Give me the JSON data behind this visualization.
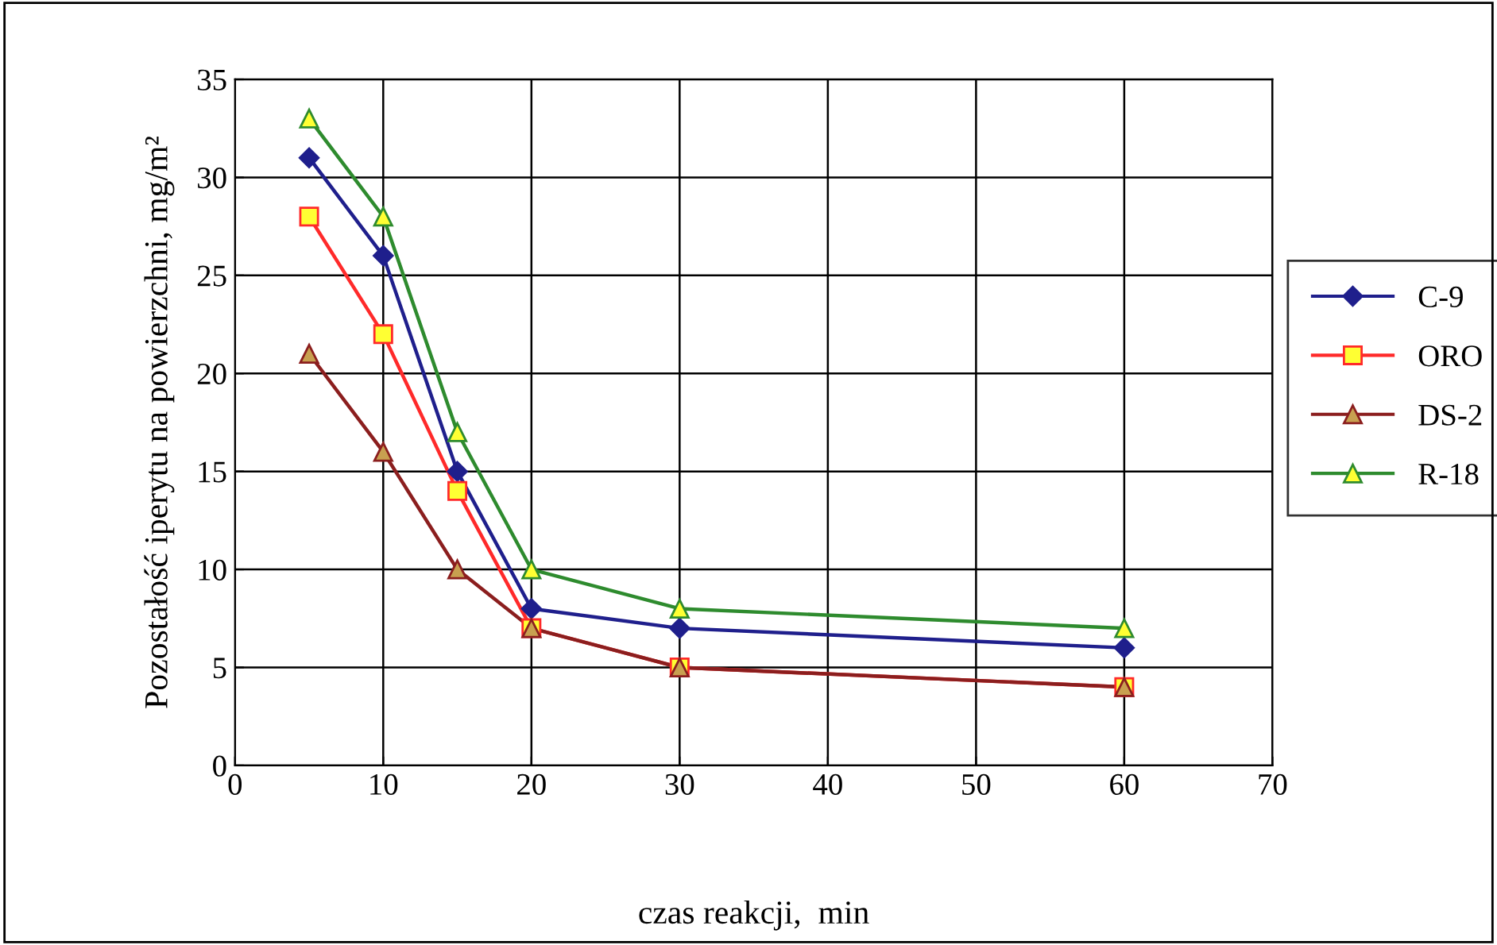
{
  "chart_data": {
    "type": "line",
    "xlabel": "czas reakcji,  min",
    "ylabel": "Pozostałość iperytu na powierzchni, mg/m²",
    "xlim": [
      0,
      70
    ],
    "xticks": [
      0,
      10,
      20,
      30,
      40,
      50,
      60,
      70
    ],
    "ylim": [
      0,
      35
    ],
    "yticks": [
      0,
      5,
      10,
      15,
      20,
      25,
      30,
      35
    ],
    "grid": true,
    "legend": "right",
    "line_style": "solid",
    "series": [
      {
        "name": "C-9",
        "color": "#1f1f8c",
        "marker": "diamond",
        "x": [
          5,
          10,
          15,
          20,
          30,
          60
        ],
        "values": [
          31,
          26,
          15,
          8,
          7,
          6
        ]
      },
      {
        "name": "ORO",
        "color": "#ff2a2a",
        "marker": "square",
        "x": [
          5,
          10,
          15,
          20,
          30,
          60
        ],
        "values": [
          28,
          22,
          14,
          7,
          5,
          4
        ]
      },
      {
        "name": "DS-2",
        "color": "#8b1e1e",
        "marker": "triangle",
        "x": [
          5,
          10,
          15,
          20,
          30,
          60
        ],
        "values": [
          21,
          16,
          10,
          7,
          5,
          4
        ]
      },
      {
        "name": "R-18",
        "color": "#2e8b2e",
        "marker": "triangle",
        "x": [
          5,
          10,
          15,
          20,
          30,
          60
        ],
        "values": [
          33,
          28,
          17,
          10,
          8,
          7
        ]
      }
    ]
  }
}
